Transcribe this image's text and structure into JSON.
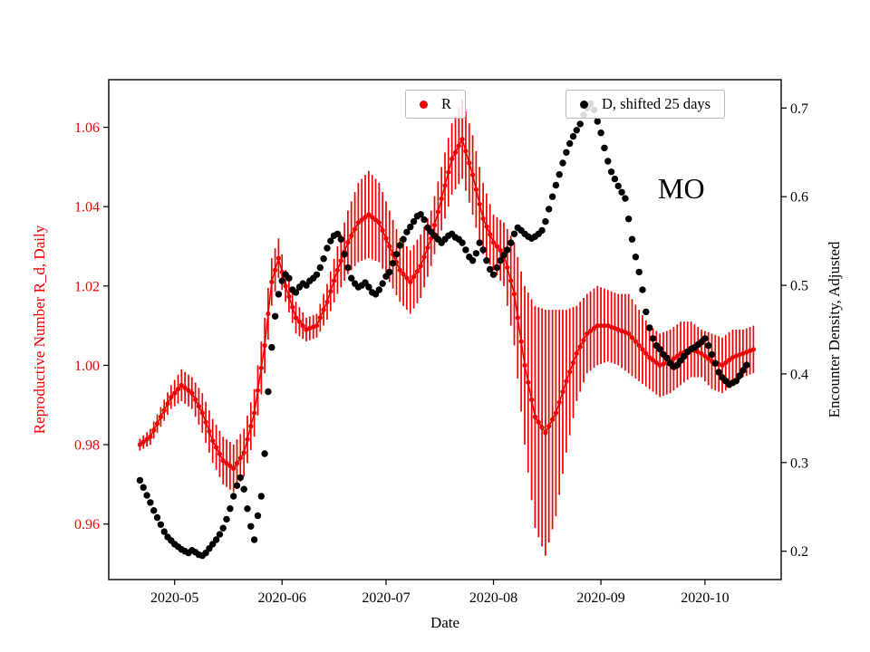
{
  "chart_data": {
    "type": "line",
    "title": "",
    "xlabel": "Date",
    "ylabel_left": "Reproductive Number R_d, Daily",
    "ylabel_right": "Encounter Density, Adjusted",
    "annotation": "MO",
    "grid": false,
    "legend_entries": [
      {
        "label": "R",
        "marker": "dot",
        "color": "#f00000"
      },
      {
        "label": "D, shifted 25 days",
        "marker": "dot",
        "color": "#000000"
      }
    ],
    "axes": {
      "x_range": [
        "2020-04-12",
        "2020-10-23"
      ],
      "x_tick_values": [
        "2020-05-01",
        "2020-06-01",
        "2020-07-01",
        "2020-08-01",
        "2020-09-01",
        "2020-10-01"
      ],
      "x_tick_labels": [
        "2020-05",
        "2020-06",
        "2020-07",
        "2020-08",
        "2020-09",
        "2020-10"
      ],
      "left": {
        "range": [
          0.946,
          1.072
        ],
        "tick_values": [
          0.96,
          0.98,
          1.0,
          1.02,
          1.04,
          1.06
        ],
        "tick_labels": [
          "0.96",
          "0.98",
          "1.00",
          "1.02",
          "1.04",
          "1.06"
        ],
        "color": "#f00000"
      },
      "right": {
        "range": [
          0.168,
          0.732
        ],
        "tick_values": [
          0.2,
          0.3,
          0.4,
          0.5,
          0.6,
          0.7
        ],
        "tick_labels": [
          "0.2",
          "0.3",
          "0.4",
          "0.5",
          "0.6",
          "0.7"
        ],
        "color": "#000000"
      }
    },
    "series": [
      {
        "name": "R",
        "axis": "left",
        "style": "errorbar",
        "color": "#f00000",
        "points": [
          [
            "2020-04-21",
            0.98,
            0.0015
          ],
          [
            "2020-04-24",
            0.982,
            0.002
          ],
          [
            "2020-04-27",
            0.987,
            0.0025
          ],
          [
            "2020-04-30",
            0.992,
            0.003
          ],
          [
            "2020-05-03",
            0.995,
            0.004
          ],
          [
            "2020-05-06",
            0.993,
            0.004
          ],
          [
            "2020-05-09",
            0.988,
            0.005
          ],
          [
            "2020-05-12",
            0.981,
            0.0055
          ],
          [
            "2020-05-15",
            0.976,
            0.006
          ],
          [
            "2020-05-18",
            0.974,
            0.006
          ],
          [
            "2020-05-21",
            0.978,
            0.006
          ],
          [
            "2020-05-24",
            0.988,
            0.006
          ],
          [
            "2020-05-27",
            1.005,
            0.007
          ],
          [
            "2020-05-29",
            1.021,
            0.006
          ],
          [
            "2020-05-31",
            1.027,
            0.005
          ],
          [
            "2020-06-02",
            1.02,
            0.004
          ],
          [
            "2020-06-05",
            1.012,
            0.004
          ],
          [
            "2020-06-08",
            1.009,
            0.003
          ],
          [
            "2020-06-11",
            1.01,
            0.003
          ],
          [
            "2020-06-14",
            1.016,
            0.0045
          ],
          [
            "2020-06-17",
            1.024,
            0.006
          ],
          [
            "2020-06-20",
            1.031,
            0.008
          ],
          [
            "2020-06-23",
            1.036,
            0.01
          ],
          [
            "2020-06-26",
            1.038,
            0.011
          ],
          [
            "2020-06-29",
            1.036,
            0.01
          ],
          [
            "2020-07-02",
            1.03,
            0.009
          ],
          [
            "2020-07-05",
            1.024,
            0.008
          ],
          [
            "2020-07-08",
            1.021,
            0.008
          ],
          [
            "2020-07-11",
            1.025,
            0.008
          ],
          [
            "2020-07-14",
            1.032,
            0.007
          ],
          [
            "2020-07-17",
            1.042,
            0.008
          ],
          [
            "2020-07-20",
            1.052,
            0.009
          ],
          [
            "2020-07-23",
            1.057,
            0.01
          ],
          [
            "2020-07-26",
            1.048,
            0.01
          ],
          [
            "2020-07-29",
            1.037,
            0.009
          ],
          [
            "2020-08-01",
            1.031,
            0.007
          ],
          [
            "2020-08-04",
            1.028,
            0.008
          ],
          [
            "2020-08-07",
            1.018,
            0.013
          ],
          [
            "2020-08-10",
            1.0,
            0.02
          ],
          [
            "2020-08-13",
            0.987,
            0.028
          ],
          [
            "2020-08-16",
            0.983,
            0.031
          ],
          [
            "2020-08-19",
            0.988,
            0.026
          ],
          [
            "2020-08-22",
            0.996,
            0.018
          ],
          [
            "2020-08-25",
            1.003,
            0.012
          ],
          [
            "2020-08-28",
            1.008,
            0.01
          ],
          [
            "2020-08-31",
            1.01,
            0.01
          ],
          [
            "2020-09-03",
            1.01,
            0.009
          ],
          [
            "2020-09-06",
            1.009,
            0.009
          ],
          [
            "2020-09-09",
            1.008,
            0.01
          ],
          [
            "2020-09-12",
            1.005,
            0.009
          ],
          [
            "2020-09-15",
            1.002,
            0.008
          ],
          [
            "2020-09-18",
            1.0,
            0.008
          ],
          [
            "2020-09-21",
            1.001,
            0.008
          ],
          [
            "2020-09-24",
            1.003,
            0.008
          ],
          [
            "2020-09-27",
            1.004,
            0.007
          ],
          [
            "2020-09-30",
            1.003,
            0.006
          ],
          [
            "2020-10-03",
            1.001,
            0.007
          ],
          [
            "2020-10-06",
            1.0,
            0.007
          ],
          [
            "2020-10-09",
            1.002,
            0.007
          ],
          [
            "2020-10-12",
            1.003,
            0.006
          ],
          [
            "2020-10-15",
            1.004,
            0.006
          ]
        ]
      },
      {
        "name": "D, shifted 25 days",
        "axis": "right",
        "style": "scatter",
        "color": "#000000",
        "points": [
          [
            "2020-04-21",
            0.28
          ],
          [
            "2020-04-22",
            0.272
          ],
          [
            "2020-04-23",
            0.263
          ],
          [
            "2020-04-24",
            0.255
          ],
          [
            "2020-04-25",
            0.246
          ],
          [
            "2020-04-26",
            0.238
          ],
          [
            "2020-04-27",
            0.23
          ],
          [
            "2020-04-28",
            0.222
          ],
          [
            "2020-04-29",
            0.216
          ],
          [
            "2020-04-30",
            0.212
          ],
          [
            "2020-05-01",
            0.208
          ],
          [
            "2020-05-02",
            0.205
          ],
          [
            "2020-05-03",
            0.202
          ],
          [
            "2020-05-04",
            0.2
          ],
          [
            "2020-05-05",
            0.198
          ],
          [
            "2020-05-06",
            0.201
          ],
          [
            "2020-05-07",
            0.199
          ],
          [
            "2020-05-08",
            0.196
          ],
          [
            "2020-05-09",
            0.195
          ],
          [
            "2020-05-10",
            0.198
          ],
          [
            "2020-05-11",
            0.203
          ],
          [
            "2020-05-12",
            0.208
          ],
          [
            "2020-05-13",
            0.213
          ],
          [
            "2020-05-14",
            0.219
          ],
          [
            "2020-05-15",
            0.226
          ],
          [
            "2020-05-16",
            0.236
          ],
          [
            "2020-05-17",
            0.248
          ],
          [
            "2020-05-18",
            0.262
          ],
          [
            "2020-05-19",
            0.274
          ],
          [
            "2020-05-20",
            0.283
          ],
          [
            "2020-05-21",
            0.27
          ],
          [
            "2020-05-22",
            0.248
          ],
          [
            "2020-05-23",
            0.228
          ],
          [
            "2020-05-24",
            0.213
          ],
          [
            "2020-05-25",
            0.24
          ],
          [
            "2020-05-26",
            0.262
          ],
          [
            "2020-05-27",
            0.31
          ],
          [
            "2020-05-28",
            0.38
          ],
          [
            "2020-05-29",
            0.43
          ],
          [
            "2020-05-30",
            0.465
          ],
          [
            "2020-05-31",
            0.49
          ],
          [
            "2020-06-01",
            0.505
          ],
          [
            "2020-06-02",
            0.512
          ],
          [
            "2020-06-03",
            0.508
          ],
          [
            "2020-06-04",
            0.495
          ],
          [
            "2020-06-05",
            0.492
          ],
          [
            "2020-06-06",
            0.498
          ],
          [
            "2020-06-07",
            0.502
          ],
          [
            "2020-06-08",
            0.5
          ],
          [
            "2020-06-09",
            0.505
          ],
          [
            "2020-06-10",
            0.508
          ],
          [
            "2020-06-11",
            0.512
          ],
          [
            "2020-06-12",
            0.52
          ],
          [
            "2020-06-13",
            0.53
          ],
          [
            "2020-06-14",
            0.542
          ],
          [
            "2020-06-15",
            0.55
          ],
          [
            "2020-06-16",
            0.556
          ],
          [
            "2020-06-17",
            0.558
          ],
          [
            "2020-06-18",
            0.552
          ],
          [
            "2020-06-19",
            0.535
          ],
          [
            "2020-06-20",
            0.52
          ],
          [
            "2020-06-21",
            0.508
          ],
          [
            "2020-06-22",
            0.502
          ],
          [
            "2020-06-23",
            0.498
          ],
          [
            "2020-06-24",
            0.5
          ],
          [
            "2020-06-25",
            0.503
          ],
          [
            "2020-06-26",
            0.498
          ],
          [
            "2020-06-27",
            0.492
          ],
          [
            "2020-06-28",
            0.49
          ],
          [
            "2020-06-29",
            0.495
          ],
          [
            "2020-06-30",
            0.502
          ],
          [
            "2020-07-01",
            0.51
          ],
          [
            "2020-07-02",
            0.515
          ],
          [
            "2020-07-03",
            0.525
          ],
          [
            "2020-07-04",
            0.535
          ],
          [
            "2020-07-05",
            0.545
          ],
          [
            "2020-07-06",
            0.552
          ],
          [
            "2020-07-07",
            0.56
          ],
          [
            "2020-07-08",
            0.566
          ],
          [
            "2020-07-09",
            0.572
          ],
          [
            "2020-07-10",
            0.578
          ],
          [
            "2020-07-11",
            0.58
          ],
          [
            "2020-07-12",
            0.574
          ],
          [
            "2020-07-13",
            0.565
          ],
          [
            "2020-07-14",
            0.56
          ],
          [
            "2020-07-15",
            0.556
          ],
          [
            "2020-07-16",
            0.552
          ],
          [
            "2020-07-17",
            0.548
          ],
          [
            "2020-07-18",
            0.552
          ],
          [
            "2020-07-19",
            0.556
          ],
          [
            "2020-07-20",
            0.558
          ],
          [
            "2020-07-21",
            0.554
          ],
          [
            "2020-07-22",
            0.552
          ],
          [
            "2020-07-23",
            0.548
          ],
          [
            "2020-07-24",
            0.54
          ],
          [
            "2020-07-25",
            0.532
          ],
          [
            "2020-07-26",
            0.528
          ],
          [
            "2020-07-27",
            0.536
          ],
          [
            "2020-07-28",
            0.548
          ],
          [
            "2020-07-29",
            0.54
          ],
          [
            "2020-07-30",
            0.528
          ],
          [
            "2020-07-31",
            0.518
          ],
          [
            "2020-08-01",
            0.512
          ],
          [
            "2020-08-02",
            0.52
          ],
          [
            "2020-08-03",
            0.528
          ],
          [
            "2020-08-04",
            0.534
          ],
          [
            "2020-08-05",
            0.54
          ],
          [
            "2020-08-06",
            0.548
          ],
          [
            "2020-08-07",
            0.558
          ],
          [
            "2020-08-08",
            0.565
          ],
          [
            "2020-08-09",
            0.562
          ],
          [
            "2020-08-10",
            0.558
          ],
          [
            "2020-08-11",
            0.555
          ],
          [
            "2020-08-12",
            0.553
          ],
          [
            "2020-08-13",
            0.555
          ],
          [
            "2020-08-14",
            0.558
          ],
          [
            "2020-08-15",
            0.562
          ],
          [
            "2020-08-16",
            0.572
          ],
          [
            "2020-08-17",
            0.586
          ],
          [
            "2020-08-18",
            0.6
          ],
          [
            "2020-08-19",
            0.613
          ],
          [
            "2020-08-20",
            0.625
          ],
          [
            "2020-08-21",
            0.638
          ],
          [
            "2020-08-22",
            0.65
          ],
          [
            "2020-08-23",
            0.66
          ],
          [
            "2020-08-24",
            0.668
          ],
          [
            "2020-08-25",
            0.675
          ],
          [
            "2020-08-26",
            0.682
          ],
          [
            "2020-08-27",
            0.692
          ],
          [
            "2020-08-28",
            0.7
          ],
          [
            "2020-08-29",
            0.705
          ],
          [
            "2020-08-30",
            0.698
          ],
          [
            "2020-08-31",
            0.685
          ],
          [
            "2020-09-01",
            0.672
          ],
          [
            "2020-09-02",
            0.655
          ],
          [
            "2020-09-03",
            0.64
          ],
          [
            "2020-09-04",
            0.628
          ],
          [
            "2020-09-05",
            0.62
          ],
          [
            "2020-09-06",
            0.612
          ],
          [
            "2020-09-07",
            0.605
          ],
          [
            "2020-09-08",
            0.598
          ],
          [
            "2020-09-09",
            0.575
          ],
          [
            "2020-09-10",
            0.552
          ],
          [
            "2020-09-11",
            0.532
          ],
          [
            "2020-09-12",
            0.515
          ],
          [
            "2020-09-13",
            0.495
          ],
          [
            "2020-09-14",
            0.47
          ],
          [
            "2020-09-15",
            0.452
          ],
          [
            "2020-09-16",
            0.44
          ],
          [
            "2020-09-17",
            0.432
          ],
          [
            "2020-09-18",
            0.428
          ],
          [
            "2020-09-19",
            0.422
          ],
          [
            "2020-09-20",
            0.418
          ],
          [
            "2020-09-21",
            0.412
          ],
          [
            "2020-09-22",
            0.408
          ],
          [
            "2020-09-23",
            0.41
          ],
          [
            "2020-09-24",
            0.415
          ],
          [
            "2020-09-25",
            0.42
          ],
          [
            "2020-09-26",
            0.425
          ],
          [
            "2020-09-27",
            0.428
          ],
          [
            "2020-09-28",
            0.43
          ],
          [
            "2020-09-29",
            0.433
          ],
          [
            "2020-09-30",
            0.436
          ],
          [
            "2020-10-01",
            0.44
          ],
          [
            "2020-10-02",
            0.432
          ],
          [
            "2020-10-03",
            0.422
          ],
          [
            "2020-10-04",
            0.412
          ],
          [
            "2020-10-05",
            0.402
          ],
          [
            "2020-10-06",
            0.396
          ],
          [
            "2020-10-07",
            0.392
          ],
          [
            "2020-10-08",
            0.388
          ],
          [
            "2020-10-09",
            0.39
          ],
          [
            "2020-10-10",
            0.392
          ],
          [
            "2020-10-11",
            0.398
          ],
          [
            "2020-10-12",
            0.404
          ],
          [
            "2020-10-13",
            0.41
          ]
        ]
      }
    ]
  }
}
